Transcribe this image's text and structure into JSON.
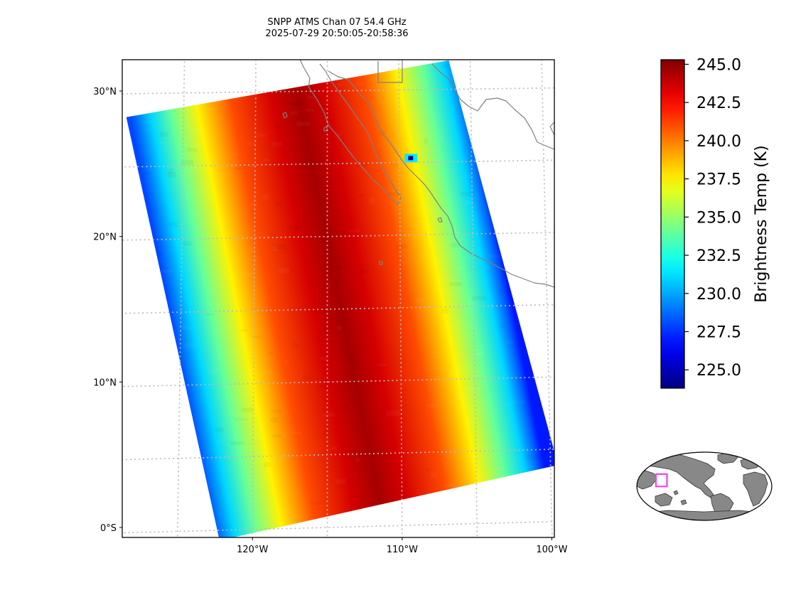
{
  "chart_data": {
    "type": "heatmap",
    "title": "SNPP ATMS Chan 07 54.4 GHz",
    "subtitle": "2025-07-29 20:50:05-20:58:36",
    "map_extent": {
      "lon_min": -129.0,
      "lon_max": -99.5,
      "lat_min": -0.2,
      "lat_max": 32.0
    },
    "x_ticks": [
      {
        "value": -120,
        "label": "120°W"
      },
      {
        "value": -110,
        "label": "110°W"
      },
      {
        "value": -100,
        "label": "100°W"
      }
    ],
    "y_ticks": [
      {
        "value": 30,
        "label": "30°N"
      },
      {
        "value": 20,
        "label": "20°N"
      },
      {
        "value": 10,
        "label": "10°N"
      },
      {
        "value": 0,
        "label": "0°S"
      }
    ],
    "grid": true,
    "colorbar": {
      "label": "Brightness Temp (K)",
      "vmin": 223.8,
      "vmax": 245.3,
      "colormap": "jet",
      "ticks": [
        {
          "value": 245.0,
          "label": "245.0"
        },
        {
          "value": 242.5,
          "label": "242.5"
        },
        {
          "value": 240.0,
          "label": "240.0"
        },
        {
          "value": 237.5,
          "label": "237.5"
        },
        {
          "value": 235.0,
          "label": "235.0"
        },
        {
          "value": 232.5,
          "label": "232.5"
        },
        {
          "value": 230.0,
          "label": "230.0"
        },
        {
          "value": 227.5,
          "label": "227.5"
        },
        {
          "value": 225.0,
          "label": "225.0"
        }
      ]
    },
    "swath": {
      "corners_lonlat": {
        "top_left": [
          -129.0,
          28.4
        ],
        "top_right": [
          -106.5,
          32.0
        ],
        "bottom_right": [
          -99.5,
          3.9
        ],
        "bottom_left": [
          -122.2,
          -0.7
        ]
      },
      "cross_track_profile": {
        "positions": [
          0.0,
          0.02,
          0.06,
          0.12,
          0.2,
          0.3,
          0.42,
          0.5,
          0.58,
          0.7,
          0.8,
          0.88,
          0.94,
          0.98,
          1.0
        ],
        "brightness_temp_k": [
          228.0,
          229.0,
          231.0,
          234.0,
          237.5,
          241.0,
          243.5,
          244.5,
          243.5,
          241.0,
          237.5,
          234.0,
          231.0,
          228.5,
          227.0
        ]
      },
      "anomaly": {
        "lon": -109.2,
        "lat": 25.3,
        "brightness_temp_k": 224.0
      }
    },
    "inset_map": {
      "projection": "global",
      "region_box": {
        "lon_min": -129.0,
        "lon_max": -99.5,
        "lat_min": -0.7,
        "lat_max": 32.0
      },
      "box_color": "#ee44ee",
      "land_color": "#888888"
    }
  }
}
